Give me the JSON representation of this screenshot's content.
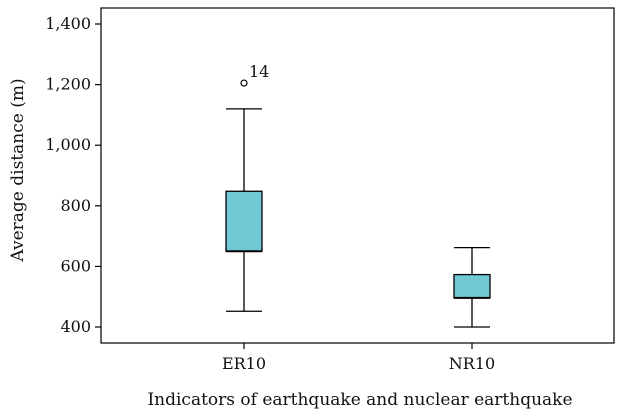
{
  "chart_data": {
    "type": "box",
    "xlabel": "Indicators of earthquake and nuclear earthquake",
    "ylabel": "Average distance (m)",
    "ylim": [
      350,
      1460
    ],
    "yticks": [
      400,
      600,
      800,
      1000,
      1200,
      1400
    ],
    "ytick_labels": [
      "400",
      "600",
      "800",
      "1,000",
      "1,200",
      "1,400"
    ],
    "categories": [
      "ER10",
      "NR10"
    ],
    "boxes": [
      {
        "category": "ER10",
        "whisker_low": 452,
        "q1": 650,
        "median": 650,
        "q3": 848,
        "whisker_high": 1120,
        "outliers": [
          {
            "value": 1205,
            "label": "14"
          }
        ]
      },
      {
        "category": "NR10",
        "whisker_low": 400,
        "q1": 496,
        "median": 496,
        "q3": 573,
        "whisker_high": 662,
        "outliers": []
      }
    ],
    "box_color": "#6fcad6",
    "grid": false
  }
}
